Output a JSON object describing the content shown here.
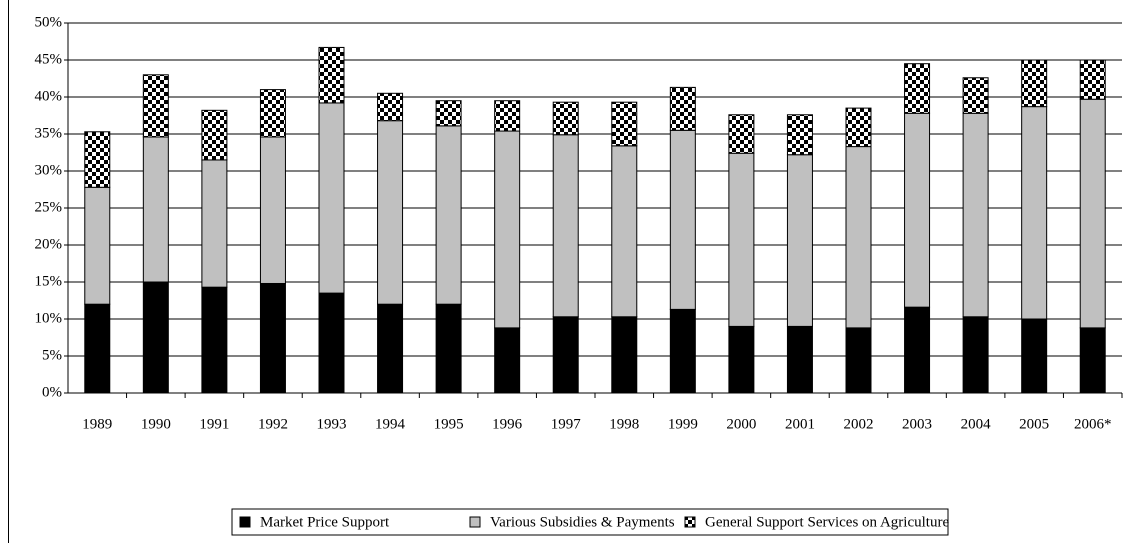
{
  "chart_data": {
    "type": "stacked_bar",
    "categories": [
      "1989",
      "1990",
      "1991",
      "1992",
      "1993",
      "1994",
      "1995",
      "1996",
      "1997",
      "1998",
      "1999",
      "2000",
      "2001",
      "2002",
      "2003",
      "2004",
      "2005",
      "2006*"
    ],
    "series": [
      {
        "name": "Market Price Support",
        "color": "#000000",
        "values": [
          12,
          15,
          14.3,
          14.8,
          13.5,
          12,
          12,
          8.8,
          10.3,
          10.3,
          11.3,
          9,
          9,
          8.8,
          11.6,
          10.3,
          10,
          8.8
        ]
      },
      {
        "name": "Various Subsidies & Payments",
        "color": "#c0c0c0",
        "values": [
          15.8,
          19.6,
          17.2,
          19.8,
          25.7,
          24.8,
          24.1,
          26.6,
          24.6,
          23.1,
          24.2,
          23.4,
          23.2,
          24.5,
          26.2,
          27.5,
          28.7,
          30.9
        ]
      },
      {
        "name": "General Support Services on Agriculture",
        "color": "#000000",
        "fill": "checker",
        "values": [
          7.5,
          8.4,
          6.7,
          6.4,
          7.5,
          3.7,
          3.4,
          4.1,
          4.4,
          5.9,
          5.8,
          5.2,
          5.4,
          5.2,
          6.7,
          4.8,
          6.3,
          5.3
        ]
      }
    ],
    "ylim": [
      0,
      50
    ],
    "yticks": [
      {
        "value": 0,
        "label": "0%"
      },
      {
        "value": 5,
        "label": "5%"
      },
      {
        "value": 10,
        "label": "10%"
      },
      {
        "value": 15,
        "label": "15%"
      },
      {
        "value": 20,
        "label": "20%"
      },
      {
        "value": 25,
        "label": "25%"
      },
      {
        "value": 30,
        "label": "30%"
      },
      {
        "value": 35,
        "label": "35%"
      },
      {
        "value": 40,
        "label": "40%"
      },
      {
        "value": 45,
        "label": "45%"
      },
      {
        "value": 50,
        "label": "50%"
      }
    ],
    "grid": true,
    "legend": "bottom"
  }
}
